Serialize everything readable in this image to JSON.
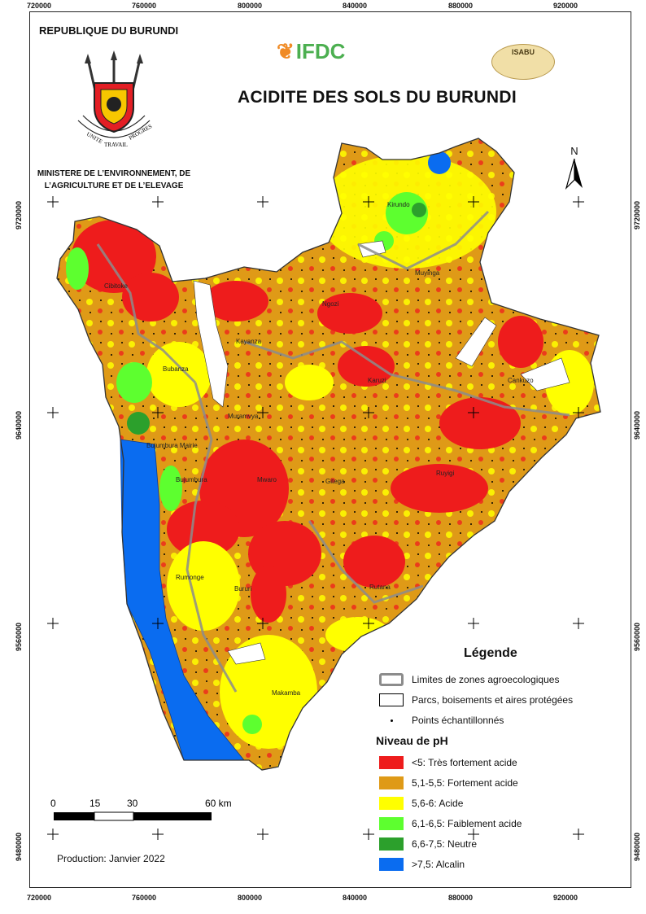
{
  "header": {
    "country": "REPUBLIQUE DU BURUNDI",
    "ministry_line1": "MINISTERE DE L’ENVIRONNEMENT, DE",
    "ministry_line2": "L’AGRICULTURE ET DE L’ELEVAGE",
    "motto_words": [
      "UNITE",
      "TRAVAIL",
      "PROGRES"
    ],
    "partner_logo": "IFDC",
    "partner_logo2": "ISABU",
    "title": "ACIDITE DES SOLS DU BURUNDI"
  },
  "coordinates": {
    "x_labels": [
      "720000",
      "760000",
      "800000",
      "840000",
      "880000",
      "920000"
    ],
    "y_labels": [
      "9720000",
      "9640000",
      "9560000",
      "9480000"
    ]
  },
  "north_arrow": {
    "label": "N"
  },
  "places": [
    "Kirundo",
    "Muyinga",
    "Cibitoke",
    "Ngozi",
    "Kayanza",
    "Bubanza",
    "Cankuzo",
    "Karuzi",
    "Muramvya",
    "Bujumbura Mairie",
    "Bujumbura",
    "Mwaro",
    "Gitega",
    "Ruyigi",
    "Rumonge",
    "Bururi",
    "Rutana",
    "Makamba"
  ],
  "legend": {
    "title": "Légende",
    "items": [
      {
        "label": "Limites de zones agroecologiques",
        "type": "outline",
        "color": "#8c8c8c"
      },
      {
        "label": "Parcs, boisements et aires protégées",
        "type": "box",
        "color": "#ffffff"
      },
      {
        "label": "Points échantillonnés",
        "type": "dot",
        "color": "#000000"
      }
    ],
    "ph_title": "Niveau de pH",
    "ph_classes": [
      {
        "label": "<5: Très fortement acide",
        "color": "#ee1c1c"
      },
      {
        "label": "5,1-5,5: Fortement acide",
        "color": "#df9a17"
      },
      {
        "label": "5,6-6: Acide",
        "color": "#ffff00"
      },
      {
        "label": "6,1-6,5: Faiblement acide",
        "color": "#5dff2f"
      },
      {
        "label": "6,6-7,5: Neutre",
        "color": "#2ca02c"
      },
      {
        "label": ">7,5: Alcalin",
        "color": "#0a6cf0"
      }
    ]
  },
  "scale": {
    "ticks": [
      "0",
      "15",
      "30",
      "60 km"
    ]
  },
  "production": "Production: Janvier 2022"
}
